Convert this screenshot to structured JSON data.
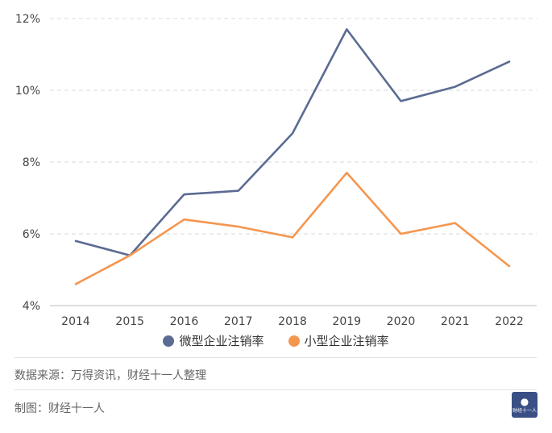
{
  "chart_data": {
    "type": "line",
    "categories": [
      "2014",
      "2015",
      "2016",
      "2017",
      "2018",
      "2019",
      "2020",
      "2021",
      "2022"
    ],
    "series": [
      {
        "name": "微型企业注销率",
        "color": "#5b6b92",
        "values": [
          5.8,
          5.4,
          7.1,
          7.2,
          8.8,
          11.7,
          9.7,
          10.1,
          10.8
        ]
      },
      {
        "name": "小型企业注销率",
        "color": "#f5964f",
        "values": [
          4.6,
          5.4,
          6.4,
          6.2,
          5.9,
          7.7,
          6.0,
          6.3,
          5.1
        ]
      }
    ],
    "yticks": [
      "4%",
      "6%",
      "8%",
      "10%",
      "12%"
    ],
    "ylim": [
      4,
      12
    ],
    "grid": true,
    "legend_position": "bottom"
  },
  "footer": {
    "source": "数据来源：万得资讯，财经十一人整理",
    "maker": "制图：财经十一人",
    "logo_text": "财经十一人"
  },
  "colors": {
    "logo_bg": "#3a4f86",
    "grid": "#d9d9d9"
  }
}
